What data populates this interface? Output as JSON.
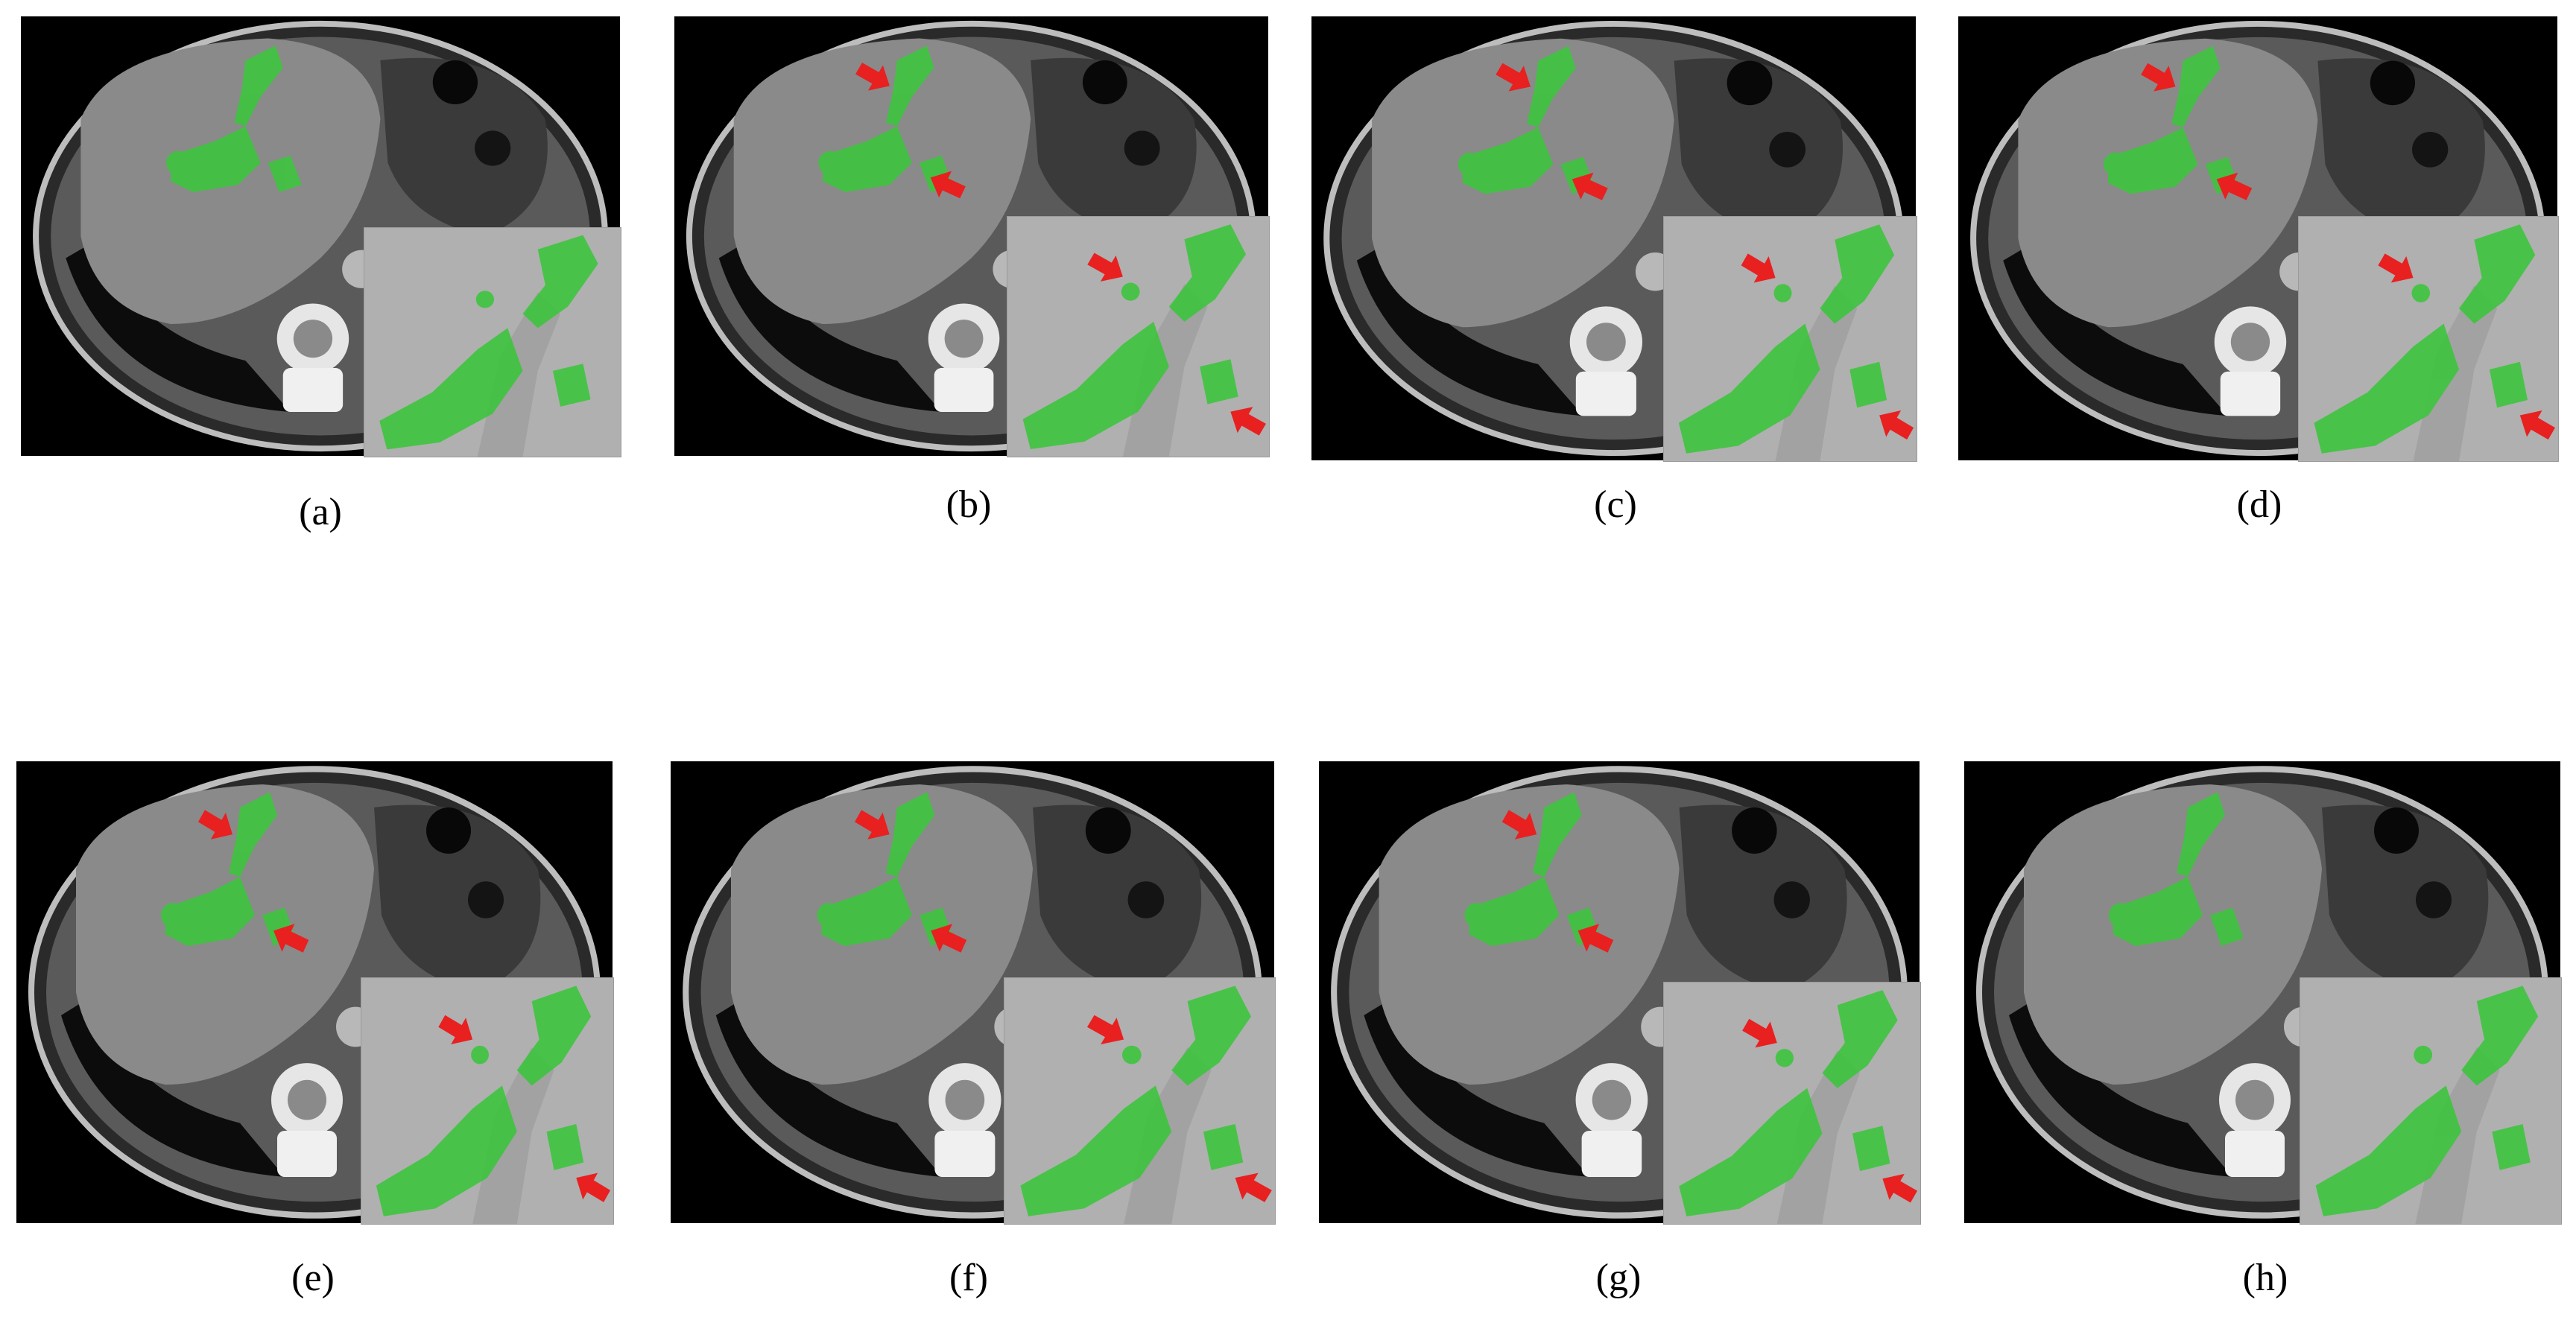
{
  "panels": [
    {
      "id": "a",
      "caption": "(a)",
      "main_arrows": 0,
      "inset_arrows": 0
    },
    {
      "id": "b",
      "caption": "(b)",
      "main_arrows": 2,
      "inset_arrows": 2
    },
    {
      "id": "c",
      "caption": "(c)",
      "main_arrows": 2,
      "inset_arrows": 2
    },
    {
      "id": "d",
      "caption": "(d)",
      "main_arrows": 2,
      "inset_arrows": 2
    },
    {
      "id": "e",
      "caption": "(e)",
      "main_arrows": 2,
      "inset_arrows": 2
    },
    {
      "id": "f",
      "caption": "(f)",
      "main_arrows": 2,
      "inset_arrows": 2
    },
    {
      "id": "g",
      "caption": "(g)",
      "main_arrows": 2,
      "inset_arrows": 2
    },
    {
      "id": "h",
      "caption": "(h)",
      "main_arrows": 0,
      "inset_arrows": 0
    }
  ],
  "colors": {
    "segmentation": "#3ec43e",
    "arrow": "#e82020",
    "background": "#000000",
    "tissue": "#8a8a8a"
  }
}
